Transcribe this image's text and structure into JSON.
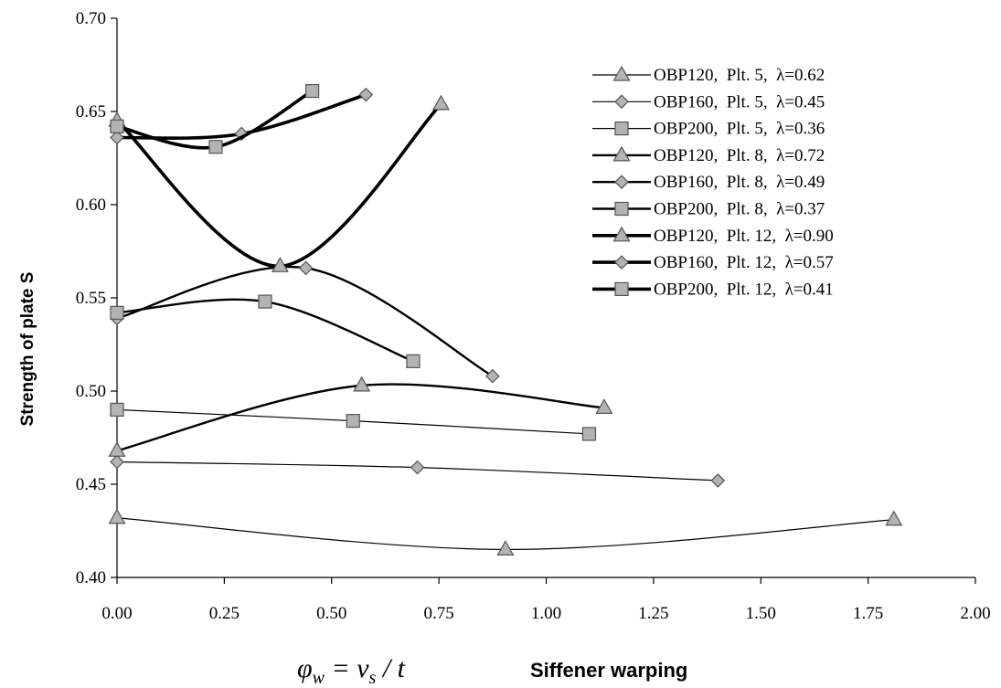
{
  "chart_data": {
    "type": "line",
    "ylabel": "Strength of plate    S",
    "xlabel_formula": "φw = vs / t",
    "xlabel": "Siffener warping",
    "xlim": [
      0,
      2
    ],
    "ylim": [
      0.4,
      0.7
    ],
    "x_ticks": [
      "0.00",
      "0.25",
      "0.50",
      "0.75",
      "1.00",
      "1.25",
      "1.50",
      "1.75",
      "2.00"
    ],
    "y_ticks": [
      "0.40",
      "0.45",
      "0.50",
      "0.55",
      "0.60",
      "0.65",
      "0.70"
    ],
    "grid": false,
    "legend_position": "top-right",
    "series": [
      {
        "name": "OBP120,  Plt. 5,  λ=0.62",
        "marker": "triangle",
        "weight": "thin",
        "x": [
          0.0,
          0.905,
          1.81
        ],
        "y": [
          0.432,
          0.415,
          0.431
        ]
      },
      {
        "name": "OBP160,  Plt. 5,  λ=0.45",
        "marker": "diamond",
        "weight": "thin",
        "x": [
          0.0,
          0.7,
          1.4
        ],
        "y": [
          0.462,
          0.459,
          0.452
        ]
      },
      {
        "name": "OBP200,  Plt. 5,  λ=0.36",
        "marker": "square",
        "weight": "thin",
        "x": [
          0.0,
          0.55,
          1.1
        ],
        "y": [
          0.49,
          0.484,
          0.477
        ]
      },
      {
        "name": "OBP120,  Plt. 8,  λ=0.72",
        "marker": "triangle",
        "weight": "medium",
        "x": [
          0.0,
          0.57,
          1.135
        ],
        "y": [
          0.468,
          0.503,
          0.491
        ]
      },
      {
        "name": "OBP160,  Plt. 8,  λ=0.49",
        "marker": "diamond",
        "weight": "medium",
        "x": [
          0.0,
          0.44,
          0.875
        ],
        "y": [
          0.539,
          0.566,
          0.508
        ]
      },
      {
        "name": "OBP200,  Plt. 8,  λ=0.37",
        "marker": "square",
        "weight": "medium",
        "x": [
          0.0,
          0.345,
          0.69
        ],
        "y": [
          0.542,
          0.548,
          0.516
        ]
      },
      {
        "name": "OBP120,  Plt. 12,  λ=0.90",
        "marker": "triangle",
        "weight": "thick",
        "x": [
          0.0,
          0.38,
          0.755
        ],
        "y": [
          0.645,
          0.567,
          0.654
        ]
      },
      {
        "name": "OBP160,  Plt. 12,  λ=0.57",
        "marker": "diamond",
        "weight": "thick",
        "x": [
          0.0,
          0.29,
          0.58
        ],
        "y": [
          0.636,
          0.638,
          0.659
        ]
      },
      {
        "name": "OBP200,  Plt. 12,  λ=0.41",
        "marker": "square",
        "weight": "thick",
        "x": [
          0.0,
          0.23,
          0.455
        ],
        "y": [
          0.642,
          0.631,
          0.661
        ]
      }
    ]
  },
  "colors": {
    "line": "#000000",
    "marker_fill": "#b3b3b3",
    "marker_stroke": "#555555",
    "axis": "#000000"
  }
}
